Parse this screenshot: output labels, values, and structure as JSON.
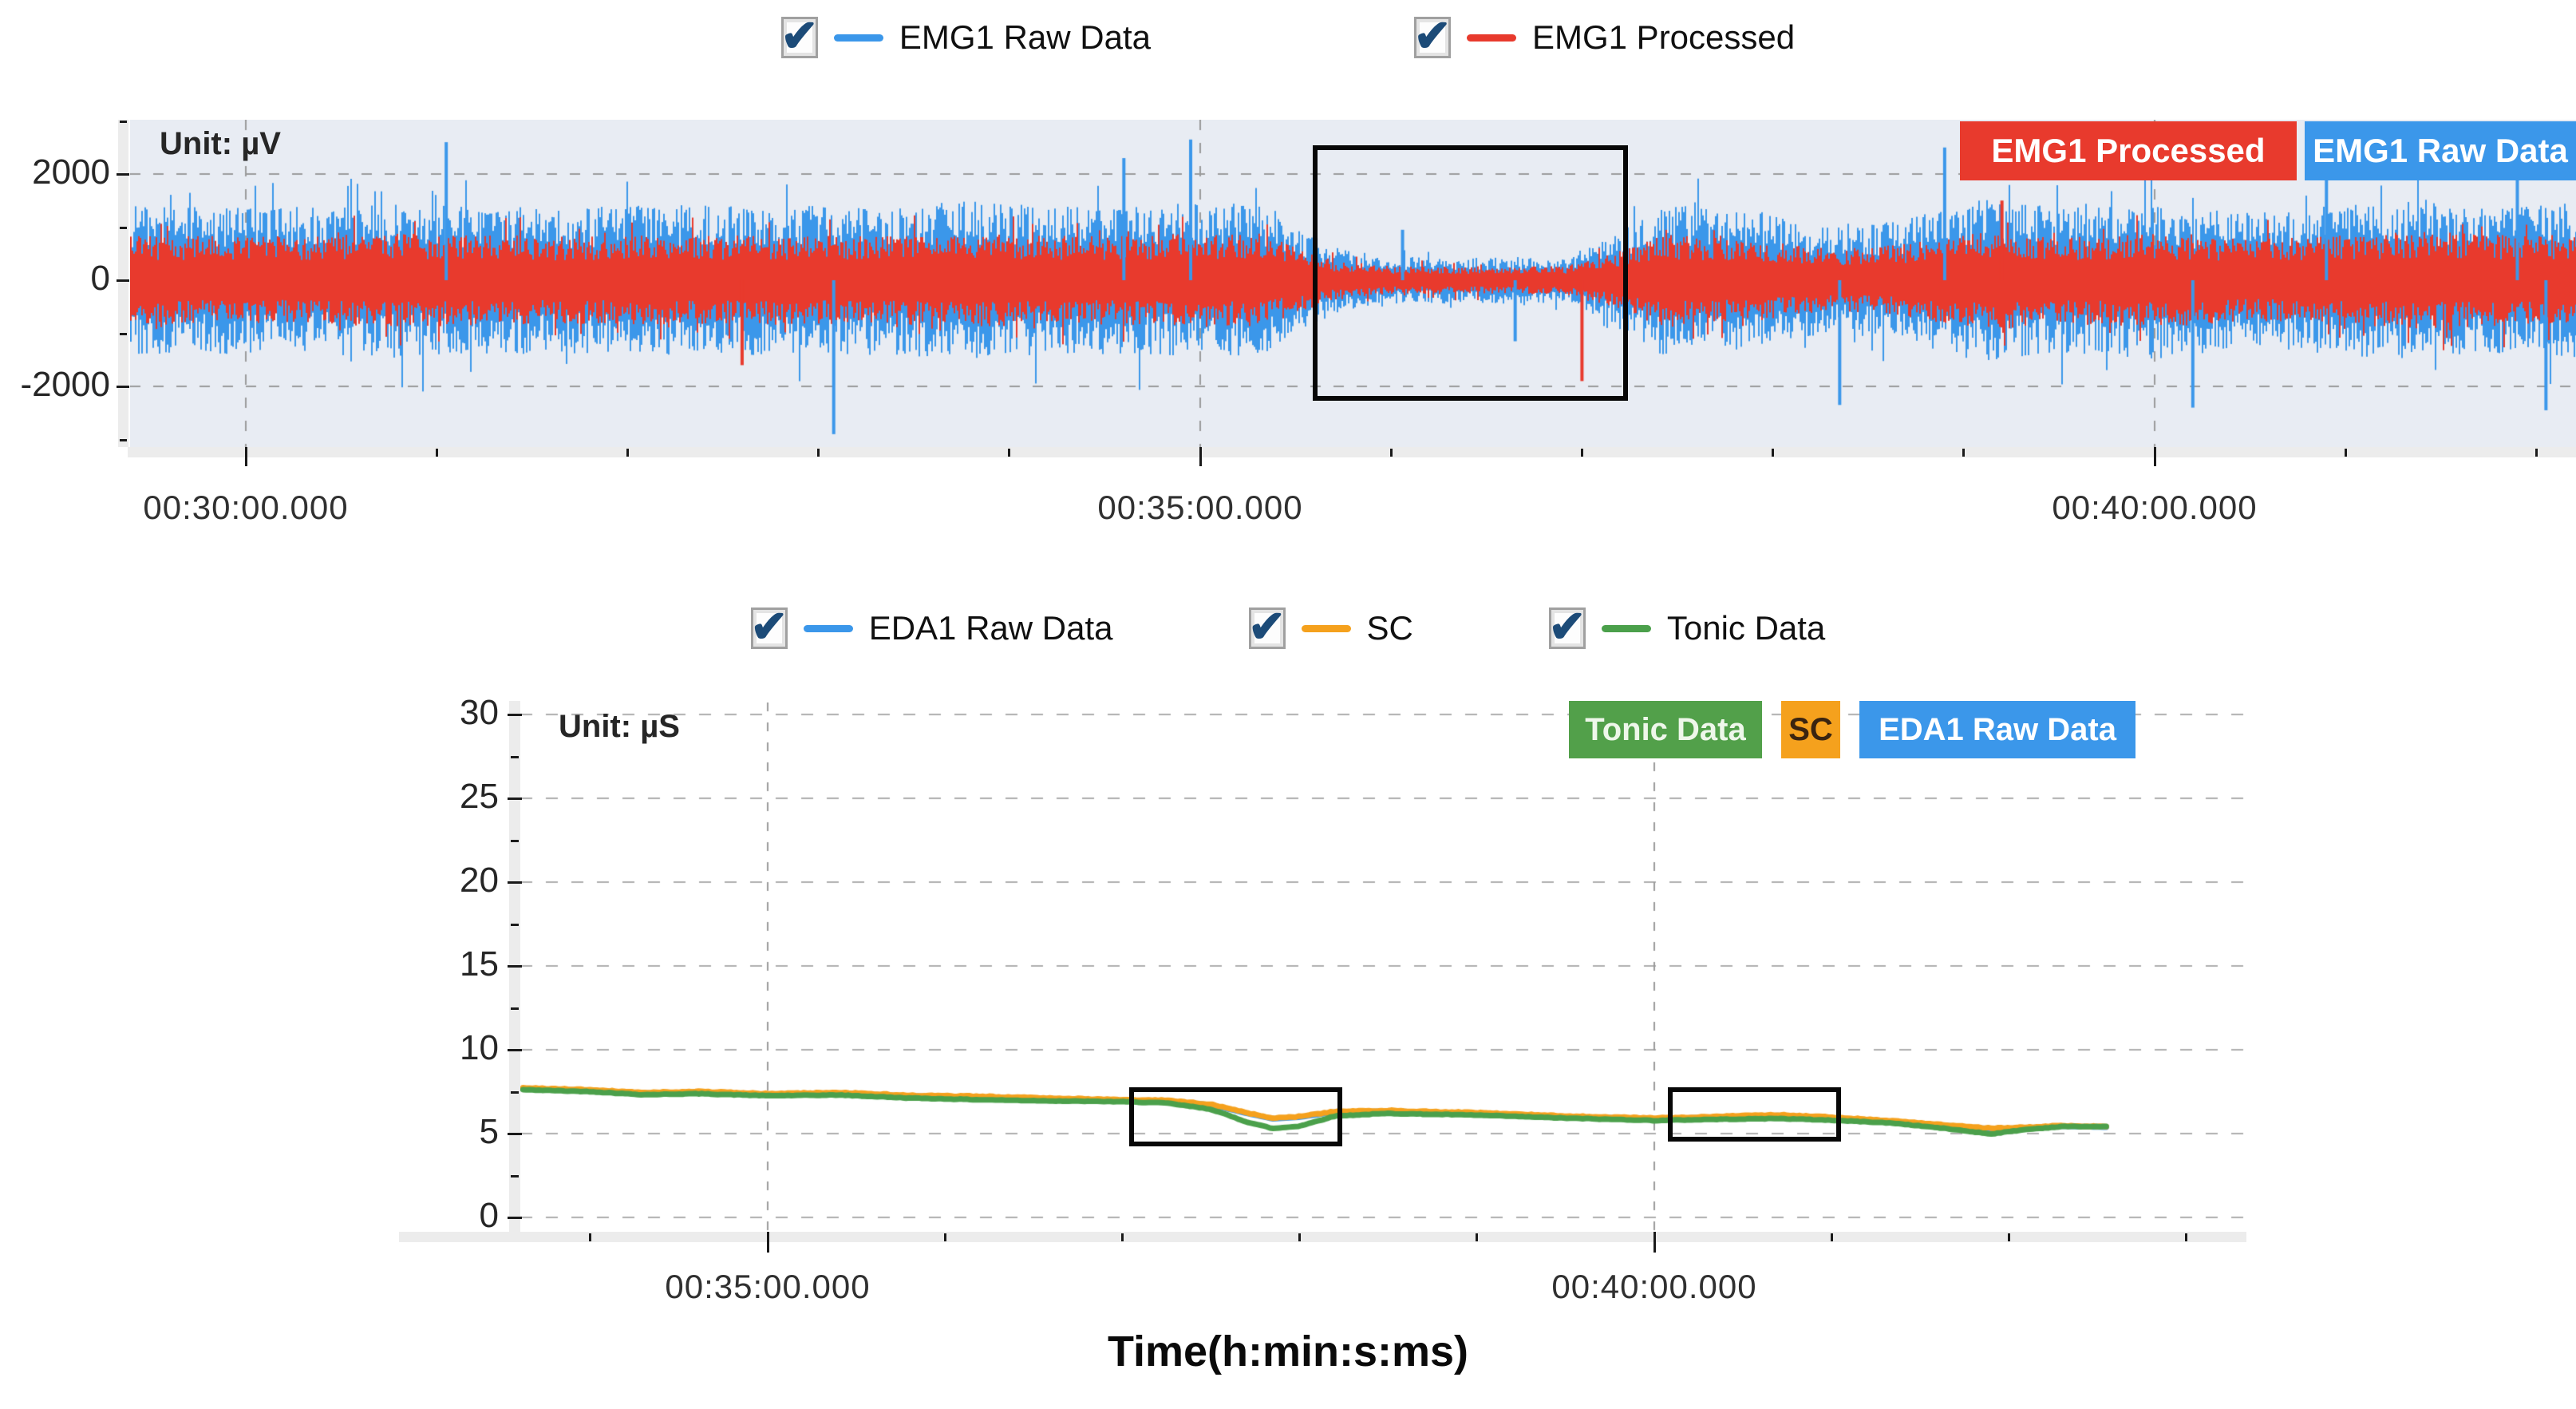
{
  "legends": {
    "emg": {
      "items": [
        {
          "label": "EMG1 Raw Data",
          "color": "#3b97ea",
          "checked": true
        },
        {
          "label": "EMG1 Processed",
          "color": "#e83a2d",
          "checked": true
        }
      ]
    },
    "eda": {
      "items": [
        {
          "label": "EDA1 Raw Data",
          "color": "#3b97ea",
          "checked": true
        },
        {
          "label": "SC",
          "color": "#f5a11d",
          "checked": true
        },
        {
          "label": "Tonic Data",
          "color": "#4ba04b",
          "checked": true
        }
      ]
    }
  },
  "badges": {
    "emg": [
      {
        "label": "EMG1 Processed",
        "bg": "#e83a2d",
        "fg": "#ffffff"
      },
      {
        "label": "EMG1 Raw Data",
        "bg": "#3b97ea",
        "fg": "#ffffff"
      }
    ],
    "eda": [
      {
        "label": "Tonic Data",
        "bg": "#52a04a",
        "fg": "#eef7ea"
      },
      {
        "label": "SC",
        "bg": "#f5a11d",
        "fg": "#3a2410"
      },
      {
        "label": "EDA1 Raw Data",
        "bg": "#3b97ea",
        "fg": "#ffffff"
      }
    ]
  },
  "chart_data": [
    {
      "id": "emg",
      "type": "area",
      "unit_label": "Unit: µV",
      "y_unit": "µV",
      "ylim": [
        -3000,
        3000
      ],
      "y_ticks": [
        2000,
        0,
        -2000
      ],
      "y_minor_ticks": [
        3000,
        1000,
        -1000,
        -3000
      ],
      "x_tick_labels": [
        "00:30:00.000",
        "00:35:00.000",
        "00:40:00.000"
      ],
      "x_tick_minutes": [
        30,
        35,
        40
      ],
      "x_minor_tick_every_min": 1,
      "x_range_min": [
        29.39,
        42.21
      ],
      "grid": "dashed",
      "series": [
        {
          "name": "EMG1 Raw Data",
          "color": "#3b97ea",
          "amplitude_envelope_uV": [
            [
              29.3,
              1400
            ],
            [
              30.2,
              1380
            ],
            [
              30.8,
              1480
            ],
            [
              31.6,
              1380
            ],
            [
              32.4,
              1420
            ],
            [
              33.2,
              1400
            ],
            [
              33.8,
              1480
            ],
            [
              34.4,
              1380
            ],
            [
              35.0,
              1480
            ],
            [
              35.3,
              1480
            ],
            [
              35.7,
              620
            ],
            [
              36.0,
              440
            ],
            [
              36.9,
              440
            ],
            [
              37.15,
              820
            ],
            [
              37.4,
              1440
            ],
            [
              37.9,
              1280
            ],
            [
              38.3,
              980
            ],
            [
              38.7,
              1150
            ],
            [
              39.1,
              1580
            ],
            [
              39.5,
              1380
            ],
            [
              40.0,
              1480
            ],
            [
              40.5,
              1300
            ],
            [
              41.0,
              1420
            ],
            [
              41.4,
              1540
            ],
            [
              41.9,
              1400
            ],
            [
              42.3,
              1480
            ]
          ],
          "spikes": [
            [
              31.05,
              2600
            ],
            [
              33.08,
              -2900
            ],
            [
              34.6,
              2300
            ],
            [
              34.95,
              2650
            ],
            [
              36.06,
              950
            ],
            [
              36.65,
              -1150
            ],
            [
              38.35,
              -2350
            ],
            [
              38.9,
              2500
            ],
            [
              40.2,
              -2400
            ],
            [
              40.9,
              2600
            ],
            [
              41.9,
              2700
            ],
            [
              42.05,
              -2450
            ]
          ]
        },
        {
          "name": "EMG1 Processed",
          "color": "#e83a2d",
          "amplitude_ratio_of_raw": 0.6,
          "spikes": [
            [
              32.6,
              -1600
            ],
            [
              37.0,
              -1900
            ],
            [
              39.2,
              1500
            ]
          ]
        }
      ],
      "highlight_box": {
        "t1": 35.59,
        "t2": 37.24,
        "v1": -2270,
        "v2": 2540
      }
    },
    {
      "id": "eda",
      "type": "line",
      "unit_label": "Unit: µS",
      "y_unit": "µS",
      "ylim": [
        0,
        30
      ],
      "y_ticks": [
        30,
        25,
        20,
        15,
        10,
        5,
        0
      ],
      "x_tick_labels": [
        "00:35:00.000",
        "00:40:00.000"
      ],
      "x_tick_minutes": [
        35,
        40
      ],
      "x_minor_tick_every_min": 1,
      "x_range_min": [
        33.6,
        42.6
      ],
      "xlabel": "Time(h:min:s:ms)",
      "grid": "dashed",
      "series": [
        {
          "name": "EDA1 Raw Data",
          "color": "#3b97ea",
          "points": [
            [
              33.62,
              7.68
            ],
            [
              34.0,
              7.58
            ],
            [
              34.3,
              7.41
            ],
            [
              34.6,
              7.48
            ],
            [
              35.0,
              7.34
            ],
            [
              35.4,
              7.41
            ],
            [
              35.8,
              7.24
            ],
            [
              36.2,
              7.18
            ],
            [
              36.6,
              7.08
            ],
            [
              37.0,
              6.98
            ],
            [
              37.25,
              6.94
            ],
            [
              37.5,
              6.71
            ],
            [
              37.7,
              6.21
            ],
            [
              37.85,
              5.88
            ],
            [
              38.0,
              5.98
            ],
            [
              38.2,
              6.28
            ],
            [
              38.5,
              6.34
            ],
            [
              39.0,
              6.21
            ],
            [
              39.5,
              6.01
            ],
            [
              40.0,
              5.88
            ],
            [
              40.35,
              5.98
            ],
            [
              40.7,
              6.08
            ],
            [
              41.0,
              5.94
            ],
            [
              41.35,
              5.71
            ],
            [
              41.6,
              5.51
            ],
            [
              41.9,
              5.28
            ],
            [
              42.1,
              5.34
            ],
            [
              42.3,
              5.44
            ],
            [
              42.55,
              5.38
            ]
          ]
        },
        {
          "name": "SC",
          "color": "#f5a11d",
          "points": [
            [
              33.62,
              7.72
            ],
            [
              34.0,
              7.62
            ],
            [
              34.3,
              7.45
            ],
            [
              34.6,
              7.52
            ],
            [
              35.0,
              7.38
            ],
            [
              35.4,
              7.45
            ],
            [
              35.8,
              7.28
            ],
            [
              36.2,
              7.22
            ],
            [
              36.6,
              7.12
            ],
            [
              37.0,
              7.02
            ],
            [
              37.25,
              6.98
            ],
            [
              37.5,
              6.75
            ],
            [
              37.7,
              6.25
            ],
            [
              37.85,
              5.92
            ],
            [
              38.0,
              6.02
            ],
            [
              38.2,
              6.32
            ],
            [
              38.5,
              6.38
            ],
            [
              39.0,
              6.25
            ],
            [
              39.5,
              6.05
            ],
            [
              40.0,
              5.92
            ],
            [
              40.35,
              6.02
            ],
            [
              40.7,
              6.12
            ],
            [
              41.0,
              5.98
            ],
            [
              41.35,
              5.75
            ],
            [
              41.6,
              5.55
            ],
            [
              41.9,
              5.32
            ],
            [
              42.1,
              5.38
            ],
            [
              42.3,
              5.48
            ],
            [
              42.55,
              5.42
            ]
          ]
        },
        {
          "name": "Tonic Data",
          "color": "#4ba04b",
          "points": [
            [
              33.62,
              7.62
            ],
            [
              34.0,
              7.5
            ],
            [
              34.3,
              7.32
            ],
            [
              34.6,
              7.38
            ],
            [
              35.0,
              7.26
            ],
            [
              35.4,
              7.3
            ],
            [
              35.8,
              7.12
            ],
            [
              36.2,
              7.02
            ],
            [
              36.6,
              6.95
            ],
            [
              37.0,
              6.9
            ],
            [
              37.25,
              6.82
            ],
            [
              37.5,
              6.45
            ],
            [
              37.7,
              5.7
            ],
            [
              37.85,
              5.3
            ],
            [
              38.0,
              5.45
            ],
            [
              38.2,
              6.05
            ],
            [
              38.5,
              6.2
            ],
            [
              39.0,
              6.1
            ],
            [
              39.5,
              5.92
            ],
            [
              40.0,
              5.78
            ],
            [
              40.35,
              5.85
            ],
            [
              40.7,
              5.9
            ],
            [
              41.0,
              5.8
            ],
            [
              41.35,
              5.62
            ],
            [
              41.6,
              5.35
            ],
            [
              41.9,
              4.98
            ],
            [
              42.1,
              5.25
            ],
            [
              42.3,
              5.42
            ],
            [
              42.55,
              5.42
            ]
          ]
        }
      ],
      "highlight_boxes": [
        {
          "t1": 37.04,
          "t2": 38.23,
          "v1": 4.24,
          "v2": 7.76
        },
        {
          "t1": 40.08,
          "t2": 41.05,
          "v1": 4.52,
          "v2": 7.76
        }
      ]
    }
  ]
}
